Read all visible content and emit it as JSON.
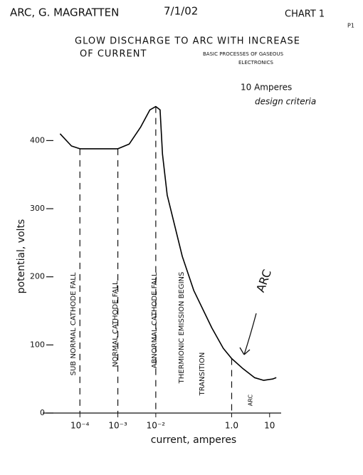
{
  "header": {
    "author": "ARC, G. MAGRATTEN",
    "date": "7/1/02",
    "chart_label": "CHART 1",
    "page": "P1"
  },
  "chart_data": {
    "type": "line",
    "title": [
      "GLOW DISCHARGE TO ARC WITH INCREASE",
      "OF CURRENT"
    ],
    "subtitle": [
      "BASIC PROCESSES OF GASEOUS",
      "ELECTRONICS"
    ],
    "note": [
      "10 Amperes",
      "design criteria"
    ],
    "x_label": "current, amperes",
    "y_label": "potential, volts",
    "log_x": true,
    "color": "#000000",
    "x": [
      3e-05,
      6e-05,
      0.0001,
      0.001,
      0.002,
      0.004,
      0.007,
      0.01,
      0.013,
      0.015,
      0.02,
      0.05,
      0.1,
      0.3,
      0.6,
      1,
      2,
      4,
      7,
      12,
      15
    ],
    "values": [
      410,
      392,
      388,
      388,
      395,
      420,
      445,
      450,
      445,
      380,
      320,
      230,
      180,
      125,
      95,
      80,
      65,
      52,
      48,
      50,
      52
    ],
    "dividers": [
      0.0001,
      0.001,
      0.01,
      1
    ],
    "regions": [
      "SUB NORMAL CATHODE FALL",
      "NORMAL CATHODE FALL",
      "ABNORMAL CATHODE FALL",
      "THERMIONIC EMISSION BEGINS",
      "TRANSITION",
      "ARC"
    ],
    "annotation": "ARC",
    "xlim": [
      2e-05,
      25
    ],
    "ylim": [
      0,
      460
    ],
    "xticks": [
      {
        "value": 0.0001,
        "label": "10⁻⁴"
      },
      {
        "value": 0.001,
        "label": "10⁻³"
      },
      {
        "value": 0.01,
        "label": "10⁻²"
      },
      {
        "value": 1,
        "label": "1.0"
      },
      10
    ],
    "yticks": [
      0,
      100,
      200,
      300,
      400
    ]
  }
}
